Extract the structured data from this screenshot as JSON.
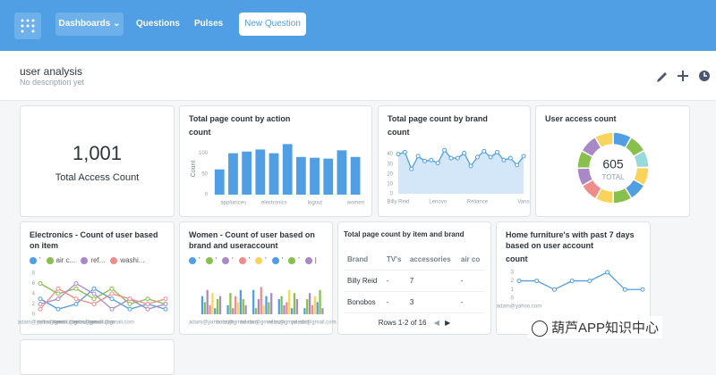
{
  "nav": {
    "items": [
      "Dashboards",
      "Questions",
      "Pulses"
    ],
    "button": "New Question"
  },
  "header": {
    "title": "user analysis",
    "description": "No description yet"
  },
  "scalar": {
    "value": "1,001",
    "label": "Total Access Count"
  },
  "chart_data": [
    {
      "type": "bar",
      "title": "Total page count by action",
      "y_label": "count",
      "axis_label": "Count",
      "categories": [
        null,
        "appliances",
        null,
        null,
        "electronics",
        null,
        null,
        "logout",
        null,
        null,
        "women"
      ],
      "values": [
        61,
        100,
        104,
        109,
        100,
        122,
        91,
        89,
        87,
        107,
        91
      ],
      "color": "#509ee3",
      "ylim": [
        0,
        125
      ],
      "yticks": [
        0,
        50,
        100
      ]
    },
    {
      "type": "line",
      "title": "Total page count by brand",
      "y_label": "count",
      "categories": [
        "Billy Reid",
        null,
        null,
        null,
        null,
        null,
        "Lenovo",
        null,
        null,
        null,
        null,
        null,
        "Reliance",
        null,
        null,
        null,
        null,
        null,
        null,
        "Vans"
      ],
      "values": [
        40,
        42,
        25,
        38,
        33,
        34,
        31,
        44,
        36,
        36,
        41,
        28,
        37,
        43,
        37,
        42,
        34,
        36,
        29,
        38
      ],
      "color": "#509ee3",
      "area": true,
      "ylim": [
        0,
        46
      ],
      "yticks": [
        0,
        10,
        20,
        30,
        40
      ]
    },
    {
      "type": "pie",
      "title": "User access count",
      "total": 605,
      "total_label": "TOTAL",
      "values": [
        52,
        50,
        48,
        51,
        49,
        52,
        50,
        51,
        50,
        49,
        52,
        51
      ],
      "colors": [
        "#509ee3",
        "#88bf4d",
        "#98d9d9",
        "#f9d45c",
        "#509ee3",
        "#88bf4d",
        "#f9d45c",
        "#ef8c8c",
        "#a989c5",
        "#88bf4d",
        "#a989c5",
        "#f9d45c"
      ]
    },
    {
      "type": "line",
      "title": "Electronics - Count of user based on item",
      "categories": [
        "adam@yahoo.com",
        "bobs@gmail.com",
        "beebs@gmail.com",
        "eebs@gmail.com",
        "peeds@gmail.com",
        null,
        null,
        null
      ],
      "series": [
        {
          "name": "'",
          "color": "#509ee3",
          "values": [
            3,
            1,
            2,
            5,
            3,
            1,
            2,
            1
          ]
        },
        {
          "name": "air c...",
          "color": "#88bf4d",
          "values": [
            6,
            4,
            5,
            3,
            5,
            2,
            3,
            2
          ]
        },
        {
          "name": "ref...",
          "color": "#a989c5",
          "values": [
            2,
            3,
            6,
            4,
            1,
            3,
            1,
            2
          ]
        },
        {
          "name": "washi...",
          "color": "#ef8c8c",
          "values": [
            1,
            5,
            3,
            2,
            4,
            3,
            2,
            3
          ]
        }
      ],
      "ylim": [
        0,
        8
      ],
      "yticks": [
        0,
        2,
        4,
        6,
        8
      ]
    },
    {
      "type": "bar",
      "title": "Women - Count of user based on brand and useraccount",
      "categories": [
        "adam@yahoo.com",
        "bobs@gmail.com",
        "beebs@gmail.com",
        "eebs@gmail.com",
        "peeds@gmail.com"
      ],
      "series": [
        {
          "name": "'",
          "color": "#509ee3",
          "values": [
            6,
            3,
            8,
            5,
            2
          ]
        },
        {
          "name": "'",
          "color": "#88bf4d",
          "values": [
            4,
            7,
            2,
            6,
            5
          ]
        },
        {
          "name": "'",
          "color": "#a989c5",
          "values": [
            8,
            2,
            5,
            3,
            7
          ]
        },
        {
          "name": "'",
          "color": "#ef8c8c",
          "values": [
            3,
            6,
            9,
            4,
            3
          ]
        },
        {
          "name": "'",
          "color": "#f9d45c",
          "values": [
            7,
            4,
            3,
            8,
            6
          ]
        },
        {
          "name": "'",
          "color": "#509ee3",
          "values": [
            2,
            8,
            6,
            2,
            4
          ]
        },
        {
          "name": "'",
          "color": "#88bf4d",
          "values": [
            5,
            5,
            4,
            7,
            8
          ]
        },
        {
          "name": "|",
          "color": "#a989c5",
          "values": [
            6,
            3,
            7,
            5,
            2
          ]
        }
      ],
      "ylim": [
        0,
        10
      ]
    },
    {
      "type": "line",
      "title": "Home furniture's with past 7 days based on user account",
      "y_label": "count",
      "categories": [
        "adam@yahoo.com",
        null,
        null,
        null,
        null,
        null,
        null,
        null
      ],
      "values": [
        2,
        2,
        1,
        2,
        2,
        3,
        1,
        1
      ],
      "color": "#509ee3",
      "ylim": [
        0,
        3.5
      ],
      "yticks": [
        0,
        1,
        2,
        3
      ]
    }
  ],
  "table": {
    "title": "Total page count by item and brand",
    "columns": [
      "Brand",
      "TV's",
      "accessories",
      "air co"
    ],
    "rows": [
      [
        "Billy Reid",
        "-",
        "7",
        "-"
      ],
      [
        "Bonobos",
        "-",
        "3",
        "-"
      ]
    ],
    "footer": "Rows 1-2 of 16"
  },
  "watermark": "葫芦APP知识中心"
}
